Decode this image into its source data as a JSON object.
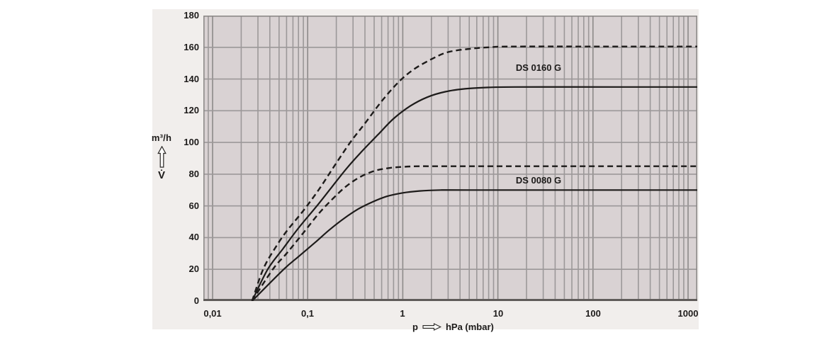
{
  "chart_data": {
    "type": "line",
    "title": "",
    "xlabel_prefix": "p",
    "xlabel_suffix": "hPa (mbar)",
    "ylabel_unit": "m³/h",
    "ylabel_symbol": "V̇",
    "x_scale": "log",
    "xlim": [
      0.008,
      1250
    ],
    "ylim": [
      0,
      180
    ],
    "grid": true,
    "legend_position": "none",
    "x_ticks": [
      {
        "p": 0.01,
        "label": "0,01"
      },
      {
        "p": 0.1,
        "label": "0,1"
      },
      {
        "p": 1,
        "label": "1"
      },
      {
        "p": 10,
        "label": "10"
      },
      {
        "p": 100,
        "label": "100"
      },
      {
        "p": 1000,
        "label": "1000"
      }
    ],
    "y_ticks": [
      {
        "v": 180,
        "label": "180"
      },
      {
        "v": 160,
        "label": "160"
      },
      {
        "v": 140,
        "label": "140"
      },
      {
        "v": 120,
        "label": "120"
      },
      {
        "v": 100,
        "label": "100"
      },
      {
        "v": 80,
        "label": "80"
      },
      {
        "v": 60,
        "label": "60"
      },
      {
        "v": 40,
        "label": "40"
      },
      {
        "v": 20,
        "label": "20"
      },
      {
        "v": 0,
        "label": "0"
      }
    ],
    "series": [
      {
        "name": "DS 0160 G",
        "line_style": "dashed",
        "max_flow": 160,
        "points": [
          [
            0.026,
            0
          ],
          [
            0.034,
            20
          ],
          [
            0.045,
            33
          ],
          [
            0.06,
            44
          ],
          [
            0.09,
            57
          ],
          [
            0.13,
            70
          ],
          [
            0.19,
            85
          ],
          [
            0.28,
            100
          ],
          [
            0.4,
            112
          ],
          [
            0.6,
            126
          ],
          [
            0.9,
            138
          ],
          [
            1.3,
            146
          ],
          [
            2,
            152.5
          ],
          [
            3,
            157
          ],
          [
            5,
            159
          ],
          [
            8,
            160
          ],
          [
            15,
            160.5
          ],
          [
            200,
            160.5
          ],
          [
            1250,
            160.5
          ]
        ]
      },
      {
        "name": "DS 0160 G",
        "line_style": "solid",
        "max_flow": 135,
        "points": [
          [
            0.026,
            0
          ],
          [
            0.038,
            20
          ],
          [
            0.055,
            33
          ],
          [
            0.08,
            46
          ],
          [
            0.125,
            60
          ],
          [
            0.18,
            72
          ],
          [
            0.26,
            84
          ],
          [
            0.38,
            95
          ],
          [
            0.55,
            105
          ],
          [
            0.8,
            115
          ],
          [
            1.2,
            123
          ],
          [
            1.8,
            128.5
          ],
          [
            2.8,
            132
          ],
          [
            4.5,
            133.8
          ],
          [
            8,
            134.7
          ],
          [
            15,
            135
          ],
          [
            200,
            135
          ],
          [
            1250,
            135
          ]
        ]
      },
      {
        "name": "DS 0080 G",
        "line_style": "dashed",
        "max_flow": 85,
        "points": [
          [
            0.026,
            0
          ],
          [
            0.043,
            20
          ],
          [
            0.06,
            30
          ],
          [
            0.09,
            43
          ],
          [
            0.13,
            55
          ],
          [
            0.18,
            64
          ],
          [
            0.25,
            72
          ],
          [
            0.35,
            78
          ],
          [
            0.5,
            82
          ],
          [
            0.7,
            83.8
          ],
          [
            1,
            84.6
          ],
          [
            1.5,
            85
          ],
          [
            3,
            85
          ],
          [
            200,
            85
          ],
          [
            1250,
            85
          ]
        ]
      },
      {
        "name": "DS 0080 G",
        "line_style": "solid",
        "max_flow": 70,
        "points": [
          [
            0.026,
            0
          ],
          [
            0.056,
            20
          ],
          [
            0.08,
            28
          ],
          [
            0.12,
            37
          ],
          [
            0.17,
            45
          ],
          [
            0.24,
            52
          ],
          [
            0.34,
            58
          ],
          [
            0.48,
            62.5
          ],
          [
            0.68,
            66
          ],
          [
            1,
            68.2
          ],
          [
            1.5,
            69.4
          ],
          [
            2.5,
            70
          ],
          [
            5,
            70
          ],
          [
            200,
            70
          ],
          [
            1250,
            70
          ]
        ]
      }
    ],
    "curve_labels": [
      {
        "text": "DS 0160 G",
        "p": 27,
        "v": 147
      },
      {
        "text": "DS 0080 G",
        "p": 27,
        "v": 76
      }
    ],
    "colors": {
      "page_bg": "#ffffff",
      "panel_bg": "#f1eeec",
      "plot_bg": "#d9d2d3",
      "grid": "#9c9899",
      "border": "#8d8a89",
      "axis": "#605c5a",
      "curve": "#1d1b1a",
      "text": "#1d1b1a"
    }
  }
}
